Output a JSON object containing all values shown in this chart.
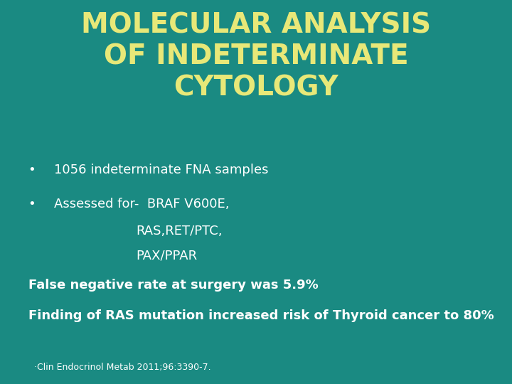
{
  "background_color": "#1a8a82",
  "title_lines": [
    "MOLECULAR ANALYSIS",
    "OF INDETERMINATE",
    "CYTOLOGY"
  ],
  "title_color": "#e8e878",
  "title_fontsize": 28,
  "body_color": "#ffffff",
  "body_fontsize": 13,
  "bullet1": "1056 indeterminate FNA samples",
  "bullet2_line1": "Assessed for-  BRAF V600E,",
  "bullet2_line2": "RAS,RET/PTC,",
  "bullet2_line3": "PAX/PPAR",
  "bullet2_indent": 0.265,
  "line3": "False negative rate at surgery was 5.9%",
  "line4": "Finding of RAS mutation increased risk of Thyroid cancer to 80%",
  "footnote_bullet": ".",
  "footnote_text": "  ·Clin Endocrinol Metab 2011;96:3390-7.",
  "footnote_fontsize": 9,
  "bullet_char": "•"
}
